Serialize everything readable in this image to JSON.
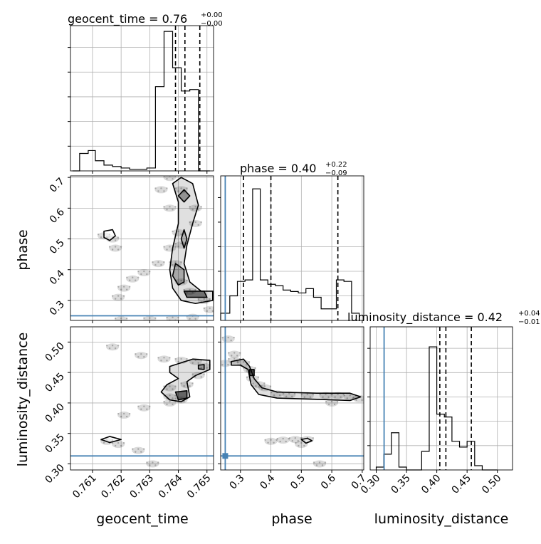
{
  "chart_data": {
    "type": "corner",
    "parameters": [
      "geocent_time",
      "phase",
      "luminosity_distance"
    ],
    "truths": {
      "phase": 0.25,
      "luminosity_distance": 0.313
    },
    "truth_color": "#4682b4",
    "titles": [
      {
        "param": "geocent_time",
        "base": "geocent_time = 0.76",
        "plus": "+0.00",
        "minus": "−0.00"
      },
      {
        "param": "phase",
        "base": "phase = 0.40",
        "plus": "+0.22",
        "minus": "−0.09"
      },
      {
        "param": "luminosity_distance",
        "base": "luminosity_distance = 0.42",
        "plus": "+0.04",
        "minus": "−0.01"
      }
    ],
    "axis_labels": {
      "x": [
        "geocent_time",
        "phase",
        "luminosity_distance"
      ],
      "y": [
        "phase",
        "luminosity_distance"
      ]
    },
    "ranges": {
      "geocent_time": [
        0.76023,
        0.76523
      ],
      "phase": [
        0.235,
        0.705
      ],
      "luminosity_distance": [
        0.29,
        0.525
      ]
    },
    "ticks": {
      "geocent_time": [
        "0.761",
        "0.762",
        "0.763",
        "0.764",
        "0.765"
      ],
      "phase": [
        "0.3",
        "0.4",
        "0.5",
        "0.6",
        "0.7"
      ],
      "luminosity_distance_y": [
        "0.30",
        "0.35",
        "0.40",
        "0.45",
        "0.50"
      ],
      "luminosity_distance_x": [
        "0.30",
        "0.35",
        "0.40",
        "0.45",
        "0.50"
      ]
    },
    "histograms": {
      "geocent_time": {
        "edges": [
          0.7603,
          0.76055,
          0.76085,
          0.7611,
          0.7614,
          0.7617,
          0.762,
          0.7623,
          0.7626,
          0.7629,
          0.7632,
          0.7635,
          0.7638,
          0.7641,
          0.7644,
          0.7647,
          0.7651
        ],
        "counts": [
          0,
          0.12,
          0.14,
          0.07,
          0.04,
          0.03,
          0.02,
          0.01,
          0.01,
          0.02,
          0.58,
          0.96,
          0.71,
          0.55,
          0.56,
          0
        ]
      },
      "phase": {
        "edges": [
          0.235,
          0.265,
          0.29,
          0.315,
          0.34,
          0.365,
          0.39,
          0.415,
          0.44,
          0.465,
          0.49,
          0.515,
          0.54,
          0.565,
          0.59,
          0.615,
          0.64,
          0.665,
          0.69
        ],
        "counts": [
          0.05,
          0.17,
          0.27,
          0.28,
          0.91,
          0.28,
          0.25,
          0.24,
          0.21,
          0.2,
          0.19,
          0.22,
          0.16,
          0.08,
          0.08,
          0.28,
          0.27,
          0.05
        ]
      },
      "luminosity_distance": {
        "edges": [
          0.3,
          0.3125,
          0.325,
          0.3375,
          0.35,
          0.3625,
          0.375,
          0.3875,
          0.4,
          0.4125,
          0.425,
          0.4375,
          0.45,
          0.4625,
          0.475,
          0.4875,
          0.5
        ],
        "counts": [
          0.02,
          0.11,
          0.26,
          0.02,
          0,
          0,
          0.13,
          0.86,
          0.39,
          0.37,
          0.2,
          0.16,
          0.2,
          0.03,
          0,
          0
        ]
      }
    },
    "quantiles": {
      "geocent_time": [
        0.7639,
        0.76423,
        0.76475
      ],
      "phase": [
        0.31,
        0.4,
        0.62
      ],
      "luminosity_distance": [
        0.405,
        0.415,
        0.457
      ]
    },
    "scatter_density": {
      "phase_vs_geocent_time": [
        [
          0.7619,
          0.31
        ],
        [
          0.7621,
          0.34
        ],
        [
          0.7624,
          0.37
        ],
        [
          0.7628,
          0.39
        ],
        [
          0.7633,
          0.42
        ],
        [
          0.7637,
          0.47
        ],
        [
          0.764,
          0.52
        ],
        [
          0.7637,
          0.6
        ],
        [
          0.7634,
          0.66
        ],
        [
          0.7637,
          0.7
        ],
        [
          0.7641,
          0.66
        ],
        [
          0.7646,
          0.6
        ],
        [
          0.7646,
          0.55
        ],
        [
          0.7641,
          0.48
        ],
        [
          0.7639,
          0.42
        ],
        [
          0.7641,
          0.36
        ],
        [
          0.7644,
          0.33
        ],
        [
          0.7649,
          0.3
        ],
        [
          0.7651,
          0.27
        ],
        [
          0.7645,
          0.245
        ],
        [
          0.7638,
          0.24
        ],
        [
          0.763,
          0.238
        ],
        [
          0.762,
          0.237
        ],
        [
          0.7614,
          0.51
        ],
        [
          0.7617,
          0.5
        ],
        [
          0.7618,
          0.47
        ]
      ],
      "luminosity_distance_vs_geocent_time": [
        [
          0.7617,
          0.492
        ],
        [
          0.7627,
          0.478
        ],
        [
          0.7635,
          0.472
        ],
        [
          0.7641,
          0.47
        ],
        [
          0.7646,
          0.468
        ],
        [
          0.7649,
          0.46
        ],
        [
          0.7647,
          0.445
        ],
        [
          0.7643,
          0.43
        ],
        [
          0.7637,
          0.425
        ],
        [
          0.7637,
          0.41
        ],
        [
          0.7641,
          0.405
        ],
        [
          0.7621,
          0.38
        ],
        [
          0.7628,
          0.392
        ],
        [
          0.7637,
          0.4
        ],
        [
          0.7615,
          0.337
        ],
        [
          0.7619,
          0.332
        ],
        [
          0.7626,
          0.322
        ],
        [
          0.7631,
          0.3
        ]
      ],
      "luminosity_distance_vs_phase": [
        [
          0.25,
          0.465
        ],
        [
          0.28,
          0.47
        ],
        [
          0.31,
          0.465
        ],
        [
          0.33,
          0.455
        ],
        [
          0.34,
          0.44
        ],
        [
          0.36,
          0.43
        ],
        [
          0.38,
          0.425
        ],
        [
          0.42,
          0.415
        ],
        [
          0.46,
          0.413
        ],
        [
          0.52,
          0.412
        ],
        [
          0.58,
          0.412
        ],
        [
          0.62,
          0.412
        ],
        [
          0.66,
          0.41
        ],
        [
          0.69,
          0.407
        ],
        [
          0.4,
          0.337
        ],
        [
          0.44,
          0.339
        ],
        [
          0.48,
          0.34
        ],
        [
          0.52,
          0.34
        ],
        [
          0.26,
          0.505
        ],
        [
          0.28,
          0.48
        ],
        [
          0.5,
          0.332
        ],
        [
          0.56,
          0.3
        ],
        [
          0.6,
          0.4
        ]
      ]
    }
  }
}
